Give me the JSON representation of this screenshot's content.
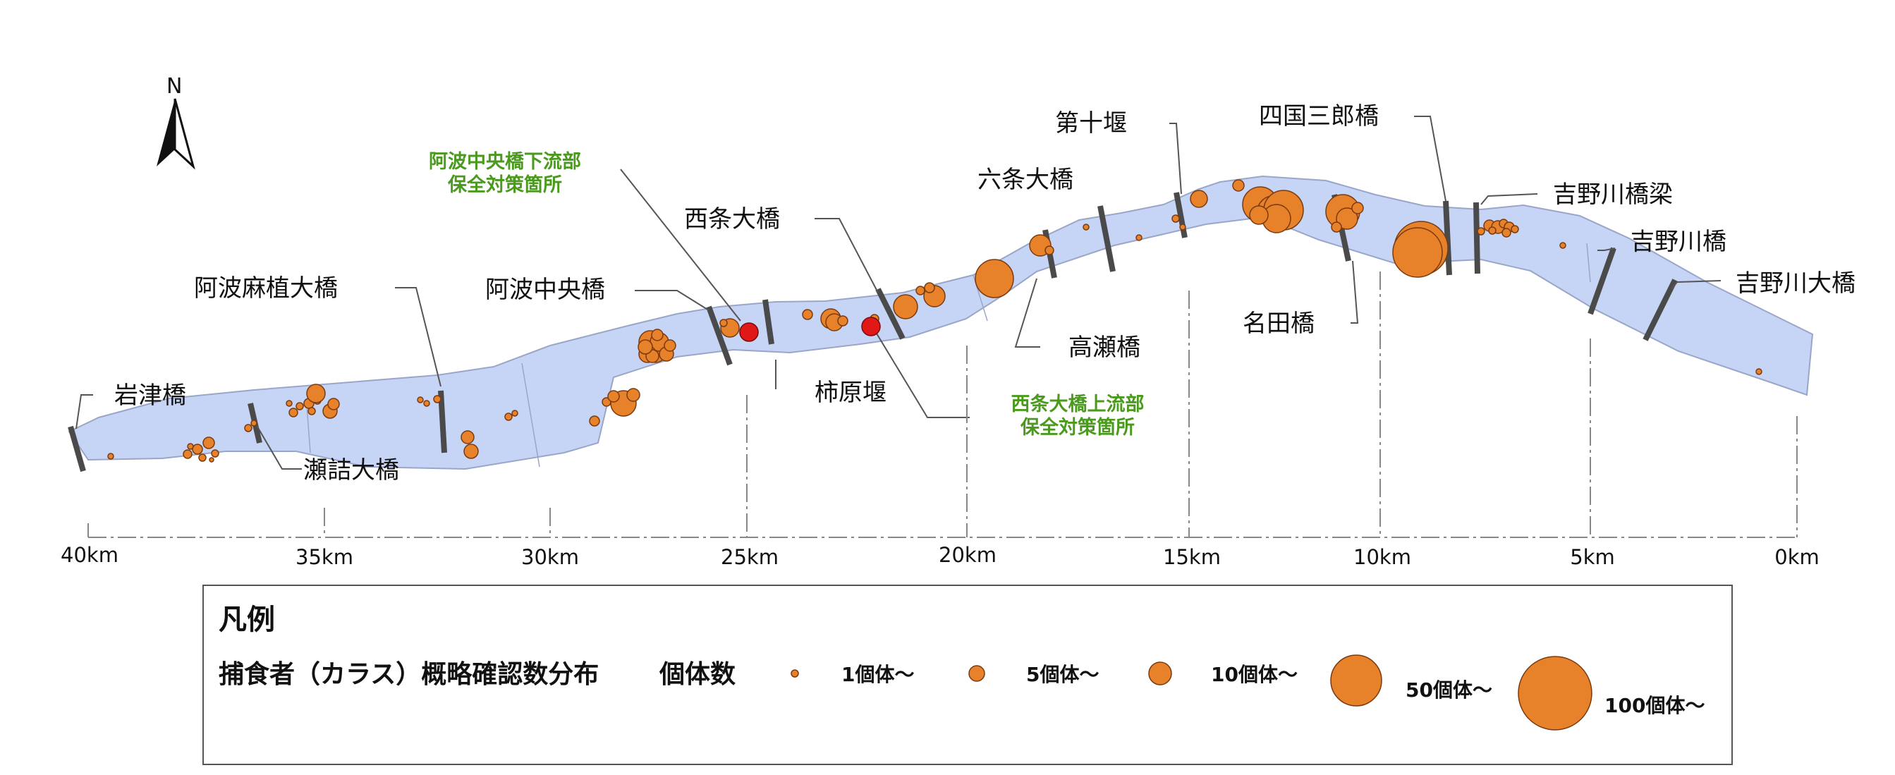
{
  "north_label": "N",
  "bridges": [
    {
      "id": "iwazu",
      "label": "岩津橋"
    },
    {
      "id": "sezume",
      "label": "瀬詰大橋"
    },
    {
      "id": "awaoe",
      "label": "阿波麻植大橋"
    },
    {
      "id": "awachuo",
      "label": "阿波中央橋"
    },
    {
      "id": "kakihara",
      "label": "柿原堰"
    },
    {
      "id": "saijo",
      "label": "西条大橋"
    },
    {
      "id": "takase",
      "label": "高瀬橋"
    },
    {
      "id": "rokujo",
      "label": "六条大橋"
    },
    {
      "id": "daiju",
      "label": "第十堰"
    },
    {
      "id": "shikoku",
      "label": "四国三郎橋"
    },
    {
      "id": "nada",
      "label": "名田橋"
    },
    {
      "id": "yoshinokyoryo",
      "label": "吉野川橋梁"
    },
    {
      "id": "yoshinohashi",
      "label": "吉野川橋"
    },
    {
      "id": "yoshinooh",
      "label": "吉野川大橋"
    }
  ],
  "conservation_sites": [
    {
      "id": "awachuo_down",
      "lines": [
        "阿波中央橋下流部",
        "保全対策箇所"
      ]
    },
    {
      "id": "saijo_up",
      "lines": [
        "西条大橋上流部",
        "保全対策箇所"
      ]
    }
  ],
  "km_ticks": [
    "40km",
    "35km",
    "30km",
    "25km",
    "20km",
    "15km",
    "10km",
    "5km",
    "0km"
  ],
  "legend": {
    "title": "凡例",
    "subtitle": "捕食者（カラス）概略確認数分布",
    "count_label": "個体数",
    "classes": [
      {
        "label": "1個体～"
      },
      {
        "label": "5個体～"
      },
      {
        "label": "10個体～"
      },
      {
        "label": "50個体～"
      },
      {
        "label": "100個体～"
      }
    ]
  },
  "colors": {
    "river": "#c6d4f5",
    "river_edge": "#9aa6c8",
    "crow_marker": "#e8822a",
    "site_marker": "#e01818",
    "site_text": "#4a9a1e"
  }
}
